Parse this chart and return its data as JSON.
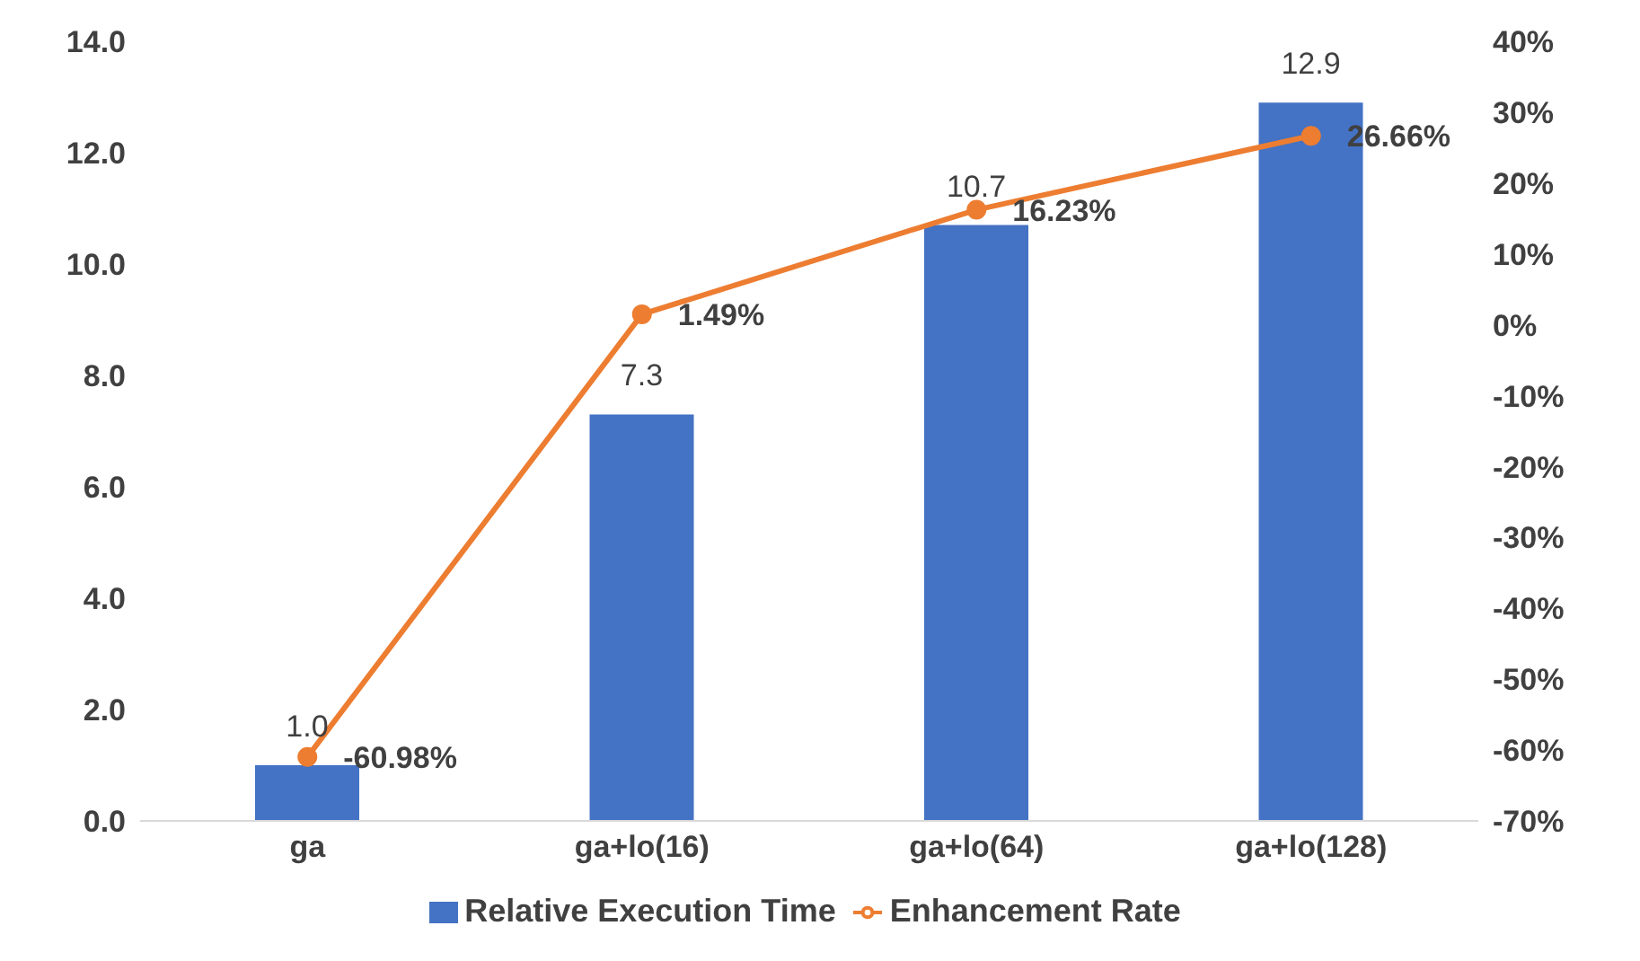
{
  "chart_data": {
    "type": "bar",
    "categories": [
      "ga",
      "ga+lo(16)",
      "ga+lo(64)",
      "ga+lo(128)"
    ],
    "series": [
      {
        "name": "Relative Execution Time",
        "color": "#4472c4",
        "values": [
          1.0,
          7.3,
          10.7,
          12.9
        ],
        "value_labels": [
          "1.0",
          "7.3",
          "10.7",
          "12.9"
        ]
      },
      {
        "name": "Enhancement Rate",
        "type": "line",
        "axis": "y2",
        "color": "#ed7d31",
        "values": [
          -60.98,
          1.49,
          16.23,
          26.66
        ],
        "value_labels": [
          "-60.98%",
          "1.49%",
          "16.23%",
          "26.66%"
        ]
      }
    ],
    "ylim": [
      0,
      14
    ],
    "yticks": [
      {
        "value": 0,
        "label": "0.0"
      },
      {
        "value": 2,
        "label": "2.0"
      },
      {
        "value": 4,
        "label": "4.0"
      },
      {
        "value": 6,
        "label": "6.0"
      },
      {
        "value": 8,
        "label": "8.0"
      },
      {
        "value": 10,
        "label": "10.0"
      },
      {
        "value": 12,
        "label": "12.0"
      },
      {
        "value": 14,
        "label": "14.0"
      }
    ],
    "y2lim": [
      -70,
      40
    ],
    "y2ticks": [
      {
        "value": -70,
        "label": "-70%"
      },
      {
        "value": -60,
        "label": "-60%"
      },
      {
        "value": -50,
        "label": "-50%"
      },
      {
        "value": -40,
        "label": "-40%"
      },
      {
        "value": -30,
        "label": "-30%"
      },
      {
        "value": -20,
        "label": "-20%"
      },
      {
        "value": -10,
        "label": "-10%"
      },
      {
        "value": 0,
        "label": "0%"
      },
      {
        "value": 10,
        "label": "10%"
      },
      {
        "value": 20,
        "label": "20%"
      },
      {
        "value": 30,
        "label": "30%"
      },
      {
        "value": 40,
        "label": "40%"
      }
    ],
    "legend": "bottom",
    "marker": "circle"
  }
}
